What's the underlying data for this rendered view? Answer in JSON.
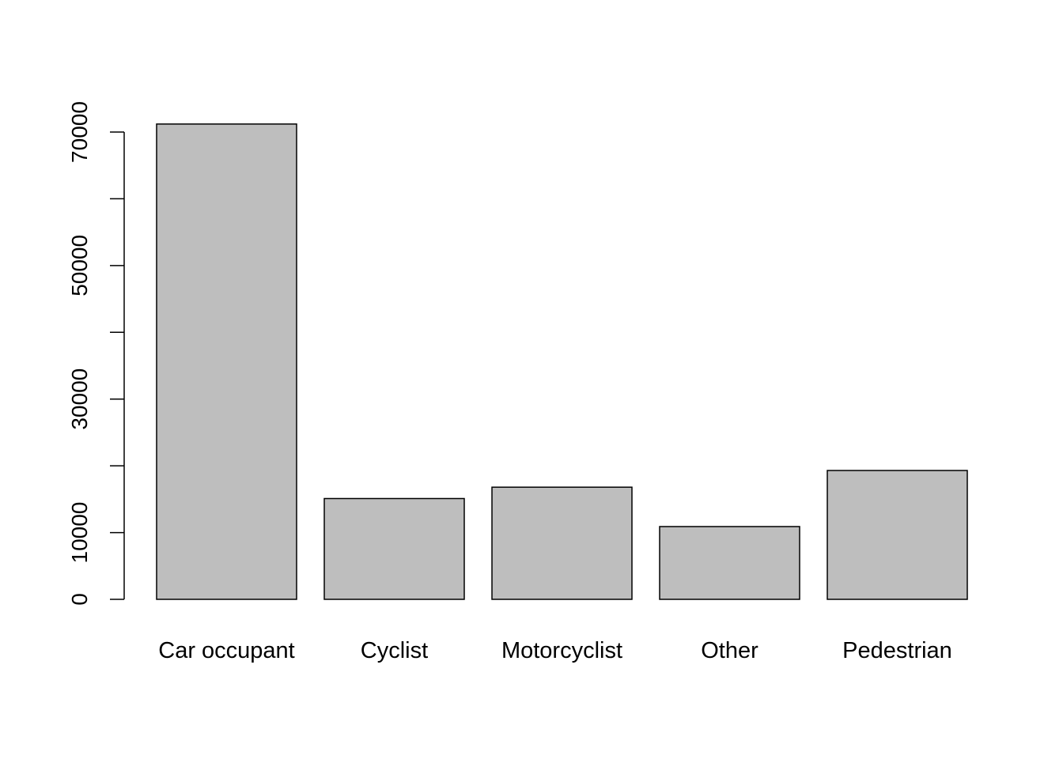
{
  "chart_data": {
    "type": "bar",
    "title": "",
    "xlabel": "",
    "ylabel": "",
    "categories": [
      "Car occupant",
      "Cyclist",
      "Motorcyclist",
      "Other",
      "Pedestrian"
    ],
    "values": [
      71200,
      15100,
      16800,
      10900,
      19300
    ],
    "ylim": [
      0,
      70000
    ],
    "y_ticks": [
      0,
      10000,
      20000,
      30000,
      40000,
      50000,
      60000,
      70000
    ],
    "y_tick_labels": [
      "0",
      "10000",
      "",
      "30000",
      "",
      "50000",
      "",
      "70000"
    ],
    "grid": false,
    "legend": "none",
    "bar_color": "#bebebe",
    "bar_border_color": "#000000"
  }
}
